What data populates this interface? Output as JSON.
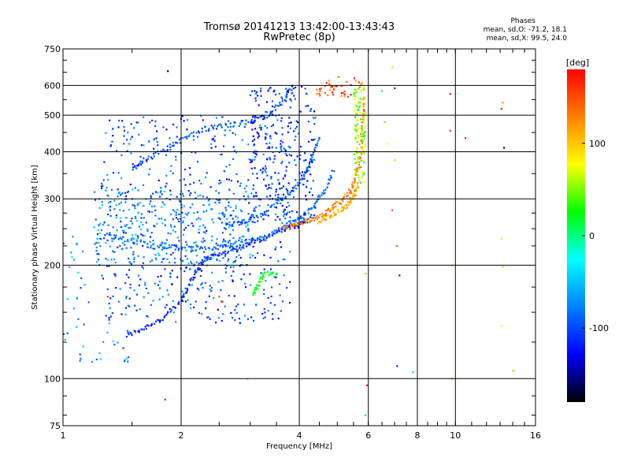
{
  "chart_data": {
    "type": "scatter",
    "title": "Tromsø 20141213 13:42:00-13:43:43",
    "subtitle": "RwPretec (8p)",
    "xlabel": "Frequency [MHz]",
    "ylabel": "Stationary phase Virtual Height [km]",
    "x_scale": "log",
    "y_scale": "log",
    "xlim": [
      1,
      16
    ],
    "ylim": [
      75,
      750
    ],
    "x_ticks": [
      1,
      2,
      4,
      6,
      8,
      10,
      16
    ],
    "y_ticks": [
      75,
      100,
      200,
      300,
      400,
      500,
      600,
      750
    ],
    "grid": true,
    "phase_stats": {
      "heading": "Phases",
      "o_line": "mean, sd,O: -71.2, 18.1",
      "x_line": "mean, sd,X: 99.5, 24.0"
    },
    "colorbar": {
      "label": "[deg]",
      "range": [
        -180,
        180
      ],
      "ticks": [
        100,
        0,
        -100
      ],
      "colors": [
        "#ff0000",
        "#ff8000",
        "#ffff00",
        "#00ff00",
        "#00ffff",
        "#0080ff",
        "#0000ff",
        "#000000"
      ]
    },
    "traces": [
      {
        "name": "",
        "phase": -115,
        "points": [
          [
            1.45,
            130
          ],
          [
            1.6,
            136
          ],
          [
            1.8,
            145
          ],
          [
            2.0,
            160
          ],
          [
            2.1,
            178
          ],
          [
            2.2,
            196
          ],
          [
            2.3,
            208
          ],
          [
            2.5,
            214
          ],
          [
            2.8,
            222
          ],
          [
            3.1,
            232
          ],
          [
            3.4,
            242
          ],
          [
            3.7,
            250
          ],
          [
            4.0,
            256
          ],
          [
            4.3,
            266
          ]
        ]
      },
      {
        "name": "",
        "phase": -85,
        "points": [
          [
            1.3,
            240
          ],
          [
            1.5,
            232
          ],
          [
            1.75,
            226
          ],
          [
            2.0,
            222
          ],
          [
            2.25,
            222
          ],
          [
            2.6,
            224
          ],
          [
            3.0,
            232
          ],
          [
            3.4,
            242
          ],
          [
            3.7,
            254
          ],
          [
            4.0,
            266
          ],
          [
            4.3,
            284
          ],
          [
            4.6,
            310
          ],
          [
            4.9,
            360
          ]
        ]
      },
      {
        "name": "",
        "phase": 130,
        "points": [
          [
            3.6,
            250
          ],
          [
            3.9,
            255
          ],
          [
            4.2,
            262
          ],
          [
            4.5,
            270
          ],
          [
            4.8,
            282
          ],
          [
            5.1,
            296
          ],
          [
            5.4,
            315
          ],
          [
            5.6,
            345
          ],
          [
            5.75,
            400
          ],
          [
            5.8,
            470
          ],
          [
            5.85,
            560
          ]
        ]
      },
      {
        "name": "",
        "phase": 110,
        "points": [
          [
            4.5,
            262
          ],
          [
            4.8,
            270
          ],
          [
            5.1,
            280
          ],
          [
            5.35,
            292
          ],
          [
            5.55,
            310
          ],
          [
            5.65,
            330
          ]
        ]
      },
      {
        "name": "",
        "phase": -90,
        "points": [
          [
            2.6,
            255
          ],
          [
            2.9,
            262
          ],
          [
            3.2,
            272
          ],
          [
            3.5,
            290
          ],
          [
            3.8,
            312
          ],
          [
            4.1,
            345
          ],
          [
            4.3,
            380
          ],
          [
            4.5,
            440
          ]
        ]
      },
      {
        "name": "",
        "phase": -100,
        "points": [
          [
            1.5,
            360
          ],
          [
            1.6,
            380
          ],
          [
            1.8,
            400
          ],
          [
            2.0,
            430
          ],
          [
            2.3,
            460
          ],
          [
            2.6,
            470
          ],
          [
            3.0,
            480
          ],
          [
            3.3,
            500
          ],
          [
            3.6,
            540
          ],
          [
            3.9,
            600
          ]
        ]
      },
      {
        "name": "",
        "phase": 20,
        "points": [
          [
            3.05,
            165
          ],
          [
            3.15,
            180
          ],
          [
            3.25,
            190
          ],
          [
            3.55,
            188
          ]
        ]
      }
    ],
    "point_clouds": [
      {
        "phase": -95,
        "xlim": [
          1.25,
          3.8
        ],
        "ylim": [
          140,
          500
        ],
        "count": 600
      },
      {
        "phase": -75,
        "xlim": [
          1.2,
          3.0
        ],
        "ylim": [
          200,
          320
        ],
        "count": 300
      },
      {
        "phase": -110,
        "xlim": [
          3.0,
          4.4
        ],
        "ylim": [
          260,
          600
        ],
        "count": 250
      },
      {
        "phase": -70,
        "xlim": [
          1.0,
          1.5
        ],
        "ylim": [
          110,
          240
        ],
        "count": 60
      },
      {
        "phase": 60,
        "xlim": [
          5.5,
          5.9
        ],
        "ylim": [
          330,
          600
        ],
        "count": 120
      },
      {
        "phase": 150,
        "xlim": [
          4.4,
          5.8
        ],
        "ylim": [
          560,
          640
        ],
        "count": 40
      }
    ],
    "scattered_points": [
      {
        "x": 6.5,
        "y": 580,
        "phase": -40
      },
      {
        "x": 7.0,
        "y": 590,
        "phase": -110
      },
      {
        "x": 6.6,
        "y": 480,
        "phase": 110
      },
      {
        "x": 6.7,
        "y": 420,
        "phase": 80
      },
      {
        "x": 7.0,
        "y": 380,
        "phase": 100
      },
      {
        "x": 6.9,
        "y": 280,
        "phase": 150
      },
      {
        "x": 7.1,
        "y": 225,
        "phase": 150
      },
      {
        "x": 7.2,
        "y": 188,
        "phase": -120
      },
      {
        "x": 5.9,
        "y": 190,
        "phase": 50
      },
      {
        "x": 7.1,
        "y": 108,
        "phase": -120
      },
      {
        "x": 7.8,
        "y": 104,
        "phase": 30
      },
      {
        "x": 5.95,
        "y": 96,
        "phase": 170
      },
      {
        "x": 5.9,
        "y": 80,
        "phase": 20
      },
      {
        "x": 9.7,
        "y": 570,
        "phase": 170
      },
      {
        "x": 9.7,
        "y": 455,
        "phase": 160
      },
      {
        "x": 10.6,
        "y": 435,
        "phase": 170
      },
      {
        "x": 9.8,
        "y": 200,
        "phase": 100
      },
      {
        "x": 9.8,
        "y": 100,
        "phase": 110
      },
      {
        "x": 13.1,
        "y": 520,
        "phase": 170
      },
      {
        "x": 13.2,
        "y": 540,
        "phase": 120
      },
      {
        "x": 13.3,
        "y": 410,
        "phase": -160
      },
      {
        "x": 13.1,
        "y": 235,
        "phase": 70
      },
      {
        "x": 13.2,
        "y": 198,
        "phase": 100
      },
      {
        "x": 13.1,
        "y": 138,
        "phase": 80
      },
      {
        "x": 14.0,
        "y": 105,
        "phase": 50
      },
      {
        "x": 1.82,
        "y": 88,
        "phase": 170
      },
      {
        "x": 1.85,
        "y": 655,
        "phase": -170
      },
      {
        "x": 2.5,
        "y": 165,
        "phase": 150
      },
      {
        "x": 2.55,
        "y": 160,
        "phase": 150
      },
      {
        "x": 1.3,
        "y": 165,
        "phase": 170
      },
      {
        "x": 2.95,
        "y": 100,
        "phase": 100
      },
      {
        "x": 6.9,
        "y": 670,
        "phase": 90
      }
    ]
  }
}
